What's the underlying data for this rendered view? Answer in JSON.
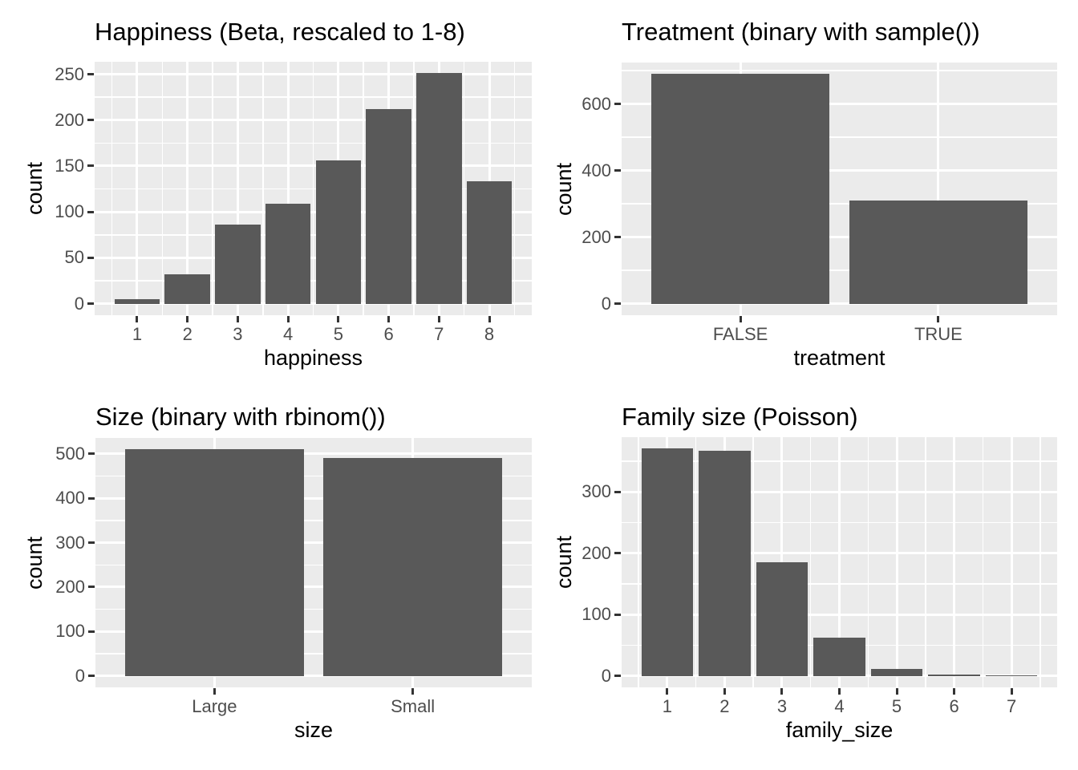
{
  "figure": {
    "description": "2x2 grid of bar charts of simulated distributions",
    "background": "#FFFFFF"
  },
  "style": {
    "bar_fill": "#595959",
    "panel_fill": "#EBEBEB",
    "grid_color": "#FFFFFF",
    "tick_label_color": "#4D4D4D",
    "tick_mark_color": "#333333",
    "title_color": "#000000"
  },
  "chart_data": [
    {
      "type": "bar",
      "title": "Happiness (Beta, rescaled to 1-8)",
      "xlabel": "happiness",
      "ylabel": "count",
      "x_type": "continuous",
      "categories": [
        "1",
        "2",
        "3",
        "4",
        "5",
        "6",
        "7",
        "8"
      ],
      "values": [
        5,
        32,
        86,
        109,
        156,
        212,
        251,
        133
      ],
      "y_ticks": [
        0,
        50,
        100,
        150,
        200,
        250
      ],
      "ylim": [
        0,
        265
      ],
      "grid": true,
      "legend": "none"
    },
    {
      "type": "bar",
      "title": "Treatment (binary with sample())",
      "xlabel": "treatment",
      "ylabel": "count",
      "x_type": "discrete",
      "categories": [
        "FALSE",
        "TRUE"
      ],
      "values": [
        690,
        310
      ],
      "y_ticks": [
        0,
        200,
        400,
        600
      ],
      "ylim": [
        0,
        725
      ],
      "grid": true,
      "legend": "none"
    },
    {
      "type": "bar",
      "title": "Size (binary with rbinom())",
      "xlabel": "size",
      "ylabel": "count",
      "x_type": "discrete",
      "categories": [
        "Large",
        "Small"
      ],
      "values": [
        510,
        490
      ],
      "y_ticks": [
        0,
        100,
        200,
        300,
        400,
        500
      ],
      "ylim": [
        0,
        560
      ],
      "grid": true,
      "legend": "none"
    },
    {
      "type": "bar",
      "title": "Family size (Poisson)",
      "xlabel": "family_size",
      "ylabel": "count",
      "x_type": "continuous",
      "categories": [
        "1",
        "2",
        "3",
        "4",
        "5",
        "6",
        "7"
      ],
      "values": [
        371,
        367,
        185,
        63,
        11,
        3,
        1
      ],
      "y_ticks": [
        0,
        100,
        200,
        300
      ],
      "ylim": [
        0,
        410
      ],
      "grid": true,
      "legend": "none"
    }
  ]
}
